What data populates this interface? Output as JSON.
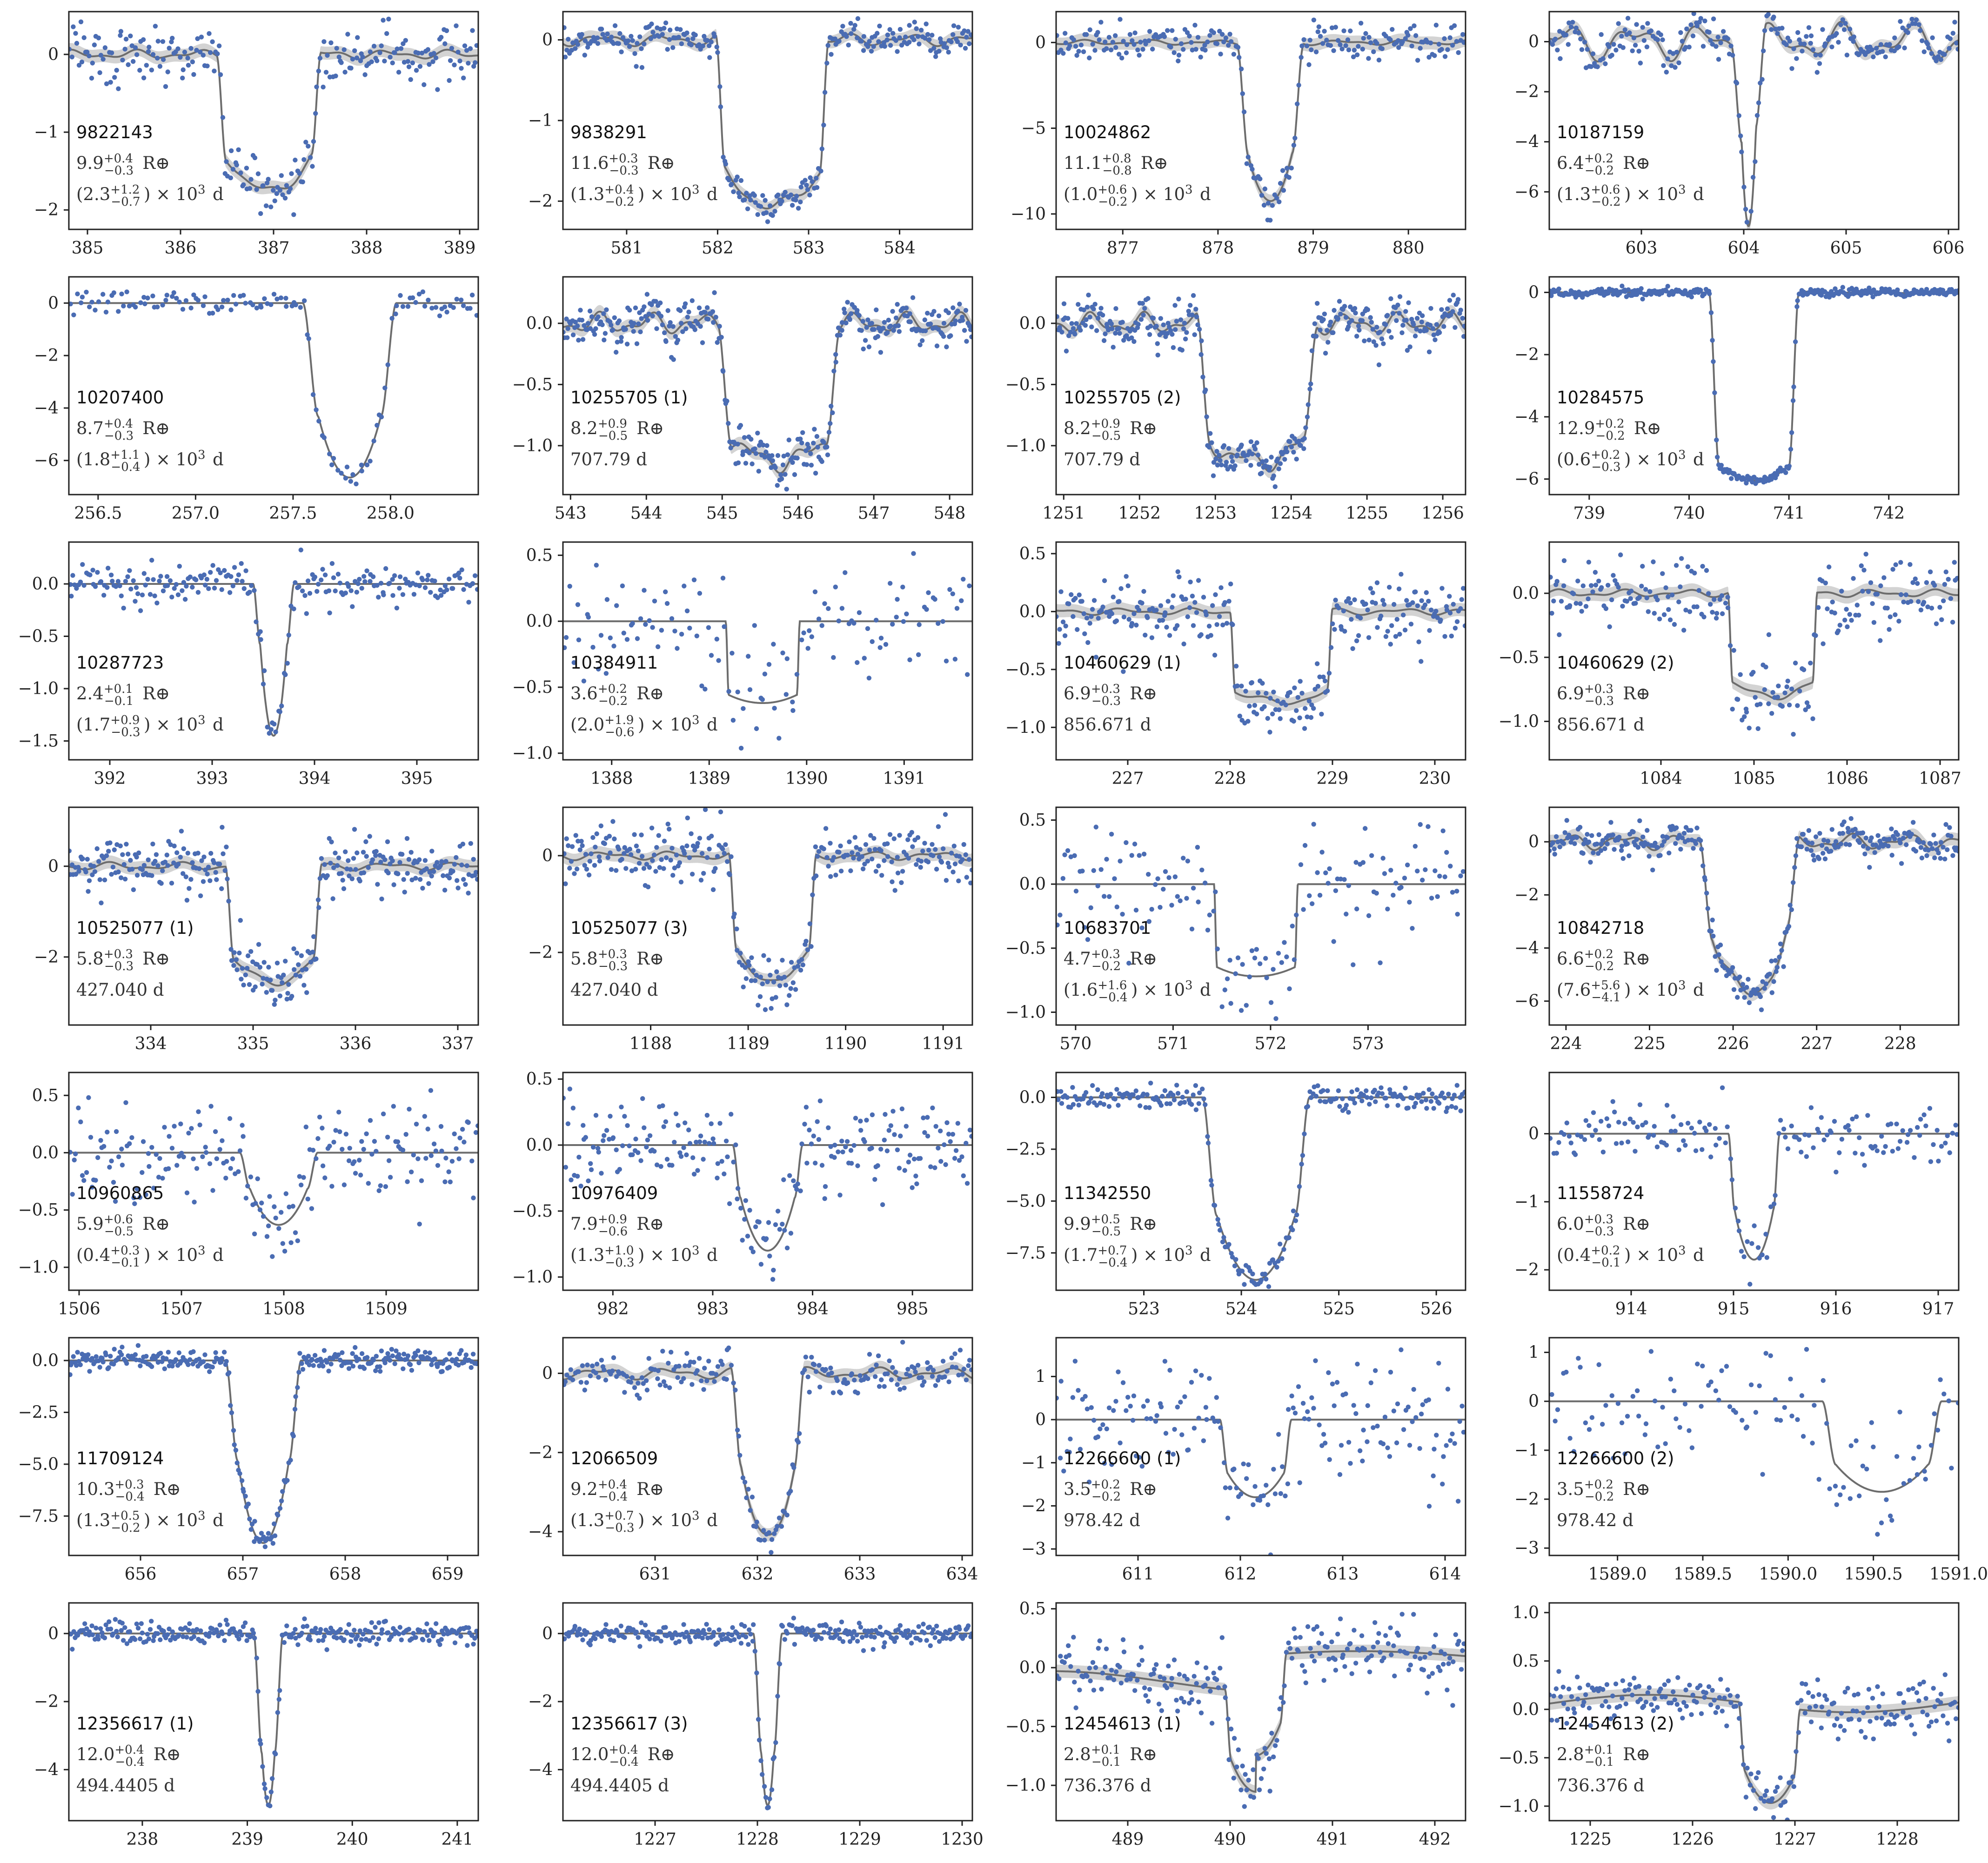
{
  "colors": {
    "points": "#4a6cb3",
    "model": "#6d6d6d",
    "band": "#c8c8c8",
    "frame": "#222222"
  },
  "chart_data": [
    {
      "type": "scatter",
      "label": "9822143",
      "radius": "9.9^{+0.4}_{-0.3} R⊕",
      "period": "(2.3^{+1.2}_{-0.7}) × 10³ d",
      "xlim": [
        384.8,
        389.2
      ],
      "ylim": [
        -2.25,
        0.55
      ],
      "xticks": [
        385,
        386,
        387,
        388,
        389
      ],
      "yticks": [
        0,
        -1,
        -2
      ],
      "t0": 386.95,
      "half": 0.56,
      "ing": 0.1,
      "depth": 1.75,
      "curv": 0.25,
      "noise": 0.18,
      "band": true,
      "wiggle": 0.04,
      "n": 230
    },
    {
      "type": "scatter",
      "label": "9838291",
      "radius": "11.6^{+0.3}_{-0.3} R⊕",
      "period": "(1.3^{+0.4}_{-0.2}) × 10³ d",
      "xlim": [
        580.3,
        584.8
      ],
      "ylim": [
        -2.35,
        0.35
      ],
      "xticks": [
        581,
        582,
        583,
        584
      ],
      "yticks": [
        0,
        -1,
        -2
      ],
      "t0": 582.6,
      "half": 0.62,
      "ing": 0.1,
      "depth": 2.05,
      "curv": 0.2,
      "noise": 0.09,
      "band": true,
      "wiggle": 0.05,
      "n": 260
    },
    {
      "type": "scatter",
      "label": "10024862",
      "radius": "11.1^{+0.8}_{-0.8} R⊕",
      "period": "(1.0^{+0.6}_{-0.2}) × 10³ d",
      "xlim": [
        876.3,
        880.6
      ],
      "ylim": [
        -10.9,
        1.8
      ],
      "xticks": [
        877,
        878,
        879,
        880
      ],
      "yticks": [
        0,
        -5,
        -10
      ],
      "t0": 878.55,
      "half": 0.35,
      "ing": 0.12,
      "depth": 9.3,
      "curv": 0.3,
      "noise": 0.5,
      "band": true,
      "wiggle": 0.1,
      "n": 220
    },
    {
      "type": "scatter",
      "label": "10187159",
      "radius": "6.4^{+0.2}_{-0.2} R⊕",
      "period": "(1.3^{+0.6}_{-0.2}) × 10³ d",
      "xlim": [
        602.1,
        606.1
      ],
      "ylim": [
        -7.5,
        1.2
      ],
      "xticks": [
        603,
        604,
        605,
        606
      ],
      "yticks": [
        0,
        -2,
        -4,
        -6
      ],
      "t0": 604.05,
      "half": 0.17,
      "ing": 0.1,
      "depth": 6.8,
      "curv": 0.5,
      "noise": 0.35,
      "band": true,
      "wiggle": 0.5,
      "n": 230
    },
    {
      "type": "scatter",
      "label": "10207400",
      "radius": "8.7^{+0.4}_{-0.3} R⊕",
      "period": "(1.8^{+1.1}_{-0.4}) × 10³ d",
      "xlim": [
        256.35,
        258.45
      ],
      "ylim": [
        -7.3,
        1.0
      ],
      "xticks": [
        256.5,
        257.0,
        257.5,
        258.0
      ],
      "tickfmt": 1,
      "yticks": [
        0,
        -2,
        -4,
        -6
      ],
      "t0": 257.79,
      "half": 0.24,
      "ing": 0.08,
      "depth": 6.65,
      "curv": 0.35,
      "noise": 0.25,
      "band": false,
      "wiggle": 0,
      "n": 130
    },
    {
      "type": "scatter",
      "label": "10255705 (1)",
      "radius": "8.2^{+0.9}_{-0.5} R⊕",
      "period": "707.79 d",
      "xlim": [
        542.9,
        548.3
      ],
      "ylim": [
        -1.4,
        0.38
      ],
      "xticks": [
        543,
        544,
        545,
        546,
        547,
        548
      ],
      "yticks": [
        0,
        -0.5,
        -1.0
      ],
      "tickfmt": 1,
      "t0": 545.75,
      "half": 0.8,
      "ing": 0.18,
      "depth": 1.13,
      "curv": 0.15,
      "noise": 0.08,
      "band": true,
      "wiggle": 0.06,
      "n": 330
    },
    {
      "type": "scatter",
      "label": "10255705 (2)",
      "radius": "8.2^{+0.9}_{-0.5} R⊕",
      "period": "707.79 d",
      "xlim": [
        1250.9,
        1256.3
      ],
      "ylim": [
        -1.4,
        0.38
      ],
      "xticks": [
        1251,
        1252,
        1253,
        1254,
        1255,
        1256
      ],
      "yticks": [
        0,
        -0.5,
        -1.0
      ],
      "tickfmt": 1,
      "t0": 1253.55,
      "half": 0.8,
      "ing": 0.18,
      "depth": 1.13,
      "curv": 0.15,
      "noise": 0.08,
      "band": true,
      "wiggle": 0.06,
      "n": 330
    },
    {
      "type": "scatter",
      "label": "10284575",
      "radius": "12.9^{+0.2}_{-0.2} R⊕",
      "period": "(0.6^{+0.2}_{-0.3}) × 10³ d",
      "xlim": [
        738.6,
        742.7
      ],
      "ylim": [
        -6.5,
        0.5
      ],
      "xticks": [
        739,
        740,
        741,
        742
      ],
      "yticks": [
        0,
        -2,
        -4,
        -6
      ],
      "t0": 740.65,
      "half": 0.45,
      "ing": 0.1,
      "depth": 6.05,
      "curv": 0.08,
      "noise": 0.07,
      "band": false,
      "wiggle": 0.02,
      "n": 330
    },
    {
      "type": "scatter",
      "label": "10287723",
      "radius": "2.4^{+0.1}_{-0.1} R⊕",
      "period": "(1.7^{+0.9}_{-0.3}) × 10³ d",
      "xlim": [
        391.6,
        395.6
      ],
      "ylim": [
        -1.68,
        0.4
      ],
      "xticks": [
        392,
        393,
        394,
        395
      ],
      "yticks": [
        0,
        -0.5,
        -1.0,
        -1.5
      ],
      "tickfmt": 1,
      "t0": 393.6,
      "half": 0.2,
      "ing": 0.07,
      "depth": 1.45,
      "curv": 0.6,
      "noise": 0.1,
      "band": false,
      "wiggle": 0,
      "n": 220
    },
    {
      "type": "scatter",
      "label": "10384911",
      "radius": "3.6^{+0.2}_{-0.2} R⊕",
      "period": "(2.0^{+1.9}_{-0.6}) × 10³ d",
      "xlim": [
        1387.5,
        1391.7
      ],
      "ylim": [
        -1.05,
        0.6
      ],
      "xticks": [
        1388,
        1389,
        1390,
        1391
      ],
      "yticks": [
        0.5,
        0,
        -0.5,
        -1.0
      ],
      "tickfmt": 1,
      "t0": 1389.55,
      "half": 0.38,
      "ing": 0.03,
      "depth": 0.62,
      "curv": 0.1,
      "noise": 0.2,
      "band": false,
      "wiggle": 0,
      "n": 130
    },
    {
      "type": "scatter",
      "label": "10460629 (1)",
      "radius": "6.9^{+0.3}_{-0.3} R⊕",
      "period": "856.671 d",
      "xlim": [
        226.3,
        230.3
      ],
      "ylim": [
        -1.28,
        0.6
      ],
      "xticks": [
        227,
        228,
        229,
        230
      ],
      "yticks": [
        0.5,
        0,
        -0.5,
        -1.0
      ],
      "tickfmt": 1,
      "t0": 228.5,
      "half": 0.5,
      "ing": 0.05,
      "depth": 0.78,
      "curv": 0.12,
      "noise": 0.15,
      "band": true,
      "wiggle": 0.02,
      "n": 260
    },
    {
      "type": "scatter",
      "label": "10460629 (2)",
      "radius": "6.9^{+0.3}_{-0.3} R⊕",
      "period": "856.671 d",
      "xlim": [
        1082.8,
        1087.2
      ],
      "ylim": [
        -1.3,
        0.4
      ],
      "xticks": [
        1084,
        1085,
        1086,
        1087
      ],
      "yticks": [
        0,
        -0.5,
        -1.0
      ],
      "tickfmt": 1,
      "t0": 1085.2,
      "half": 0.48,
      "ing": 0.05,
      "depth": 0.8,
      "curv": 0.12,
      "noise": 0.15,
      "band": true,
      "wiggle": 0.02,
      "n": 220
    },
    {
      "type": "scatter",
      "label": "10525077 (1)",
      "radius": "5.8^{+0.3}_{-0.3} R⊕",
      "period": "427.040 d",
      "xlim": [
        333.2,
        337.2
      ],
      "ylim": [
        -3.5,
        1.3
      ],
      "xticks": [
        334,
        335,
        336,
        337
      ],
      "yticks": [
        0,
        -2
      ],
      "t0": 335.2,
      "half": 0.47,
      "ing": 0.08,
      "depth": 2.55,
      "curv": 0.2,
      "noise": 0.3,
      "band": true,
      "wiggle": 0.06,
      "n": 300
    },
    {
      "type": "scatter",
      "label": "10525077 (3)",
      "radius": "5.8^{+0.3}_{-0.3} R⊕",
      "period": "427.040 d",
      "xlim": [
        1187.1,
        1191.3
      ],
      "ylim": [
        -3.5,
        1.0
      ],
      "xticks": [
        1188,
        1189,
        1190,
        1191
      ],
      "yticks": [
        0,
        -2
      ],
      "t0": 1189.25,
      "half": 0.45,
      "ing": 0.08,
      "depth": 2.55,
      "curv": 0.2,
      "noise": 0.3,
      "band": true,
      "wiggle": 0.06,
      "n": 280
    },
    {
      "type": "scatter",
      "label": "10683701",
      "radius": "4.7^{+0.3}_{-0.2} R⊕",
      "period": "(1.6^{+1.6}_{-0.4}) × 10³ d",
      "xlim": [
        569.8,
        574.0
      ],
      "ylim": [
        -1.1,
        0.6
      ],
      "xticks": [
        570,
        571,
        572,
        573
      ],
      "yticks": [
        0.5,
        0,
        -0.5,
        -1.0
      ],
      "tickfmt": 1,
      "t0": 571.85,
      "half": 0.43,
      "ing": 0.03,
      "depth": 0.72,
      "curv": 0.1,
      "noise": 0.22,
      "band": false,
      "wiggle": 0,
      "n": 150
    },
    {
      "type": "scatter",
      "label": "10842718",
      "radius": "6.6^{+0.2}_{-0.2} R⊕",
      "period": "(7.6^{+5.6}_{-4.1}) × 10³ d",
      "xlim": [
        223.8,
        228.7
      ],
      "ylim": [
        -6.9,
        1.3
      ],
      "xticks": [
        224,
        225,
        226,
        227,
        228
      ],
      "yticks": [
        0,
        -2,
        -4,
        -6
      ],
      "t0": 226.2,
      "half": 0.6,
      "ing": 0.15,
      "depth": 5.7,
      "curv": 0.4,
      "noise": 0.3,
      "band": true,
      "wiggle": 0.2,
      "n": 300
    },
    {
      "type": "scatter",
      "label": "10960865",
      "radius": "5.9^{+0.6}_{-0.5} R⊕",
      "period": "(0.4^{+0.3}_{-0.1}) × 10³ d",
      "xlim": [
        1505.9,
        1509.9
      ],
      "ylim": [
        -1.2,
        0.7
      ],
      "xticks": [
        1506,
        1507,
        1508,
        1509
      ],
      "yticks": [
        0.5,
        0,
        -0.5,
        -1.0
      ],
      "tickfmt": 1,
      "t0": 1507.95,
      "half": 0.38,
      "ing": 0.1,
      "depth": 0.63,
      "curv": 0.5,
      "noise": 0.22,
      "band": false,
      "wiggle": 0,
      "n": 200
    },
    {
      "type": "scatter",
      "label": "10976409",
      "radius": "7.9^{+0.9}_{-0.6} R⊕",
      "period": "(1.3^{+1.0}_{-0.3}) × 10³ d",
      "xlim": [
        981.5,
        985.6
      ],
      "ylim": [
        -1.1,
        0.55
      ],
      "xticks": [
        982,
        983,
        984,
        985
      ],
      "yticks": [
        0.5,
        0,
        -0.5,
        -1.0
      ],
      "tickfmt": 1,
      "t0": 983.55,
      "half": 0.35,
      "ing": 0.08,
      "depth": 0.8,
      "curv": 0.5,
      "noise": 0.17,
      "band": false,
      "wiggle": 0,
      "n": 220
    },
    {
      "type": "scatter",
      "label": "11342550",
      "radius": "9.9^{+0.5}_{-0.5} R⊕",
      "period": "(1.7^{+0.7}_{-0.4}) × 10³ d",
      "xlim": [
        522.1,
        526.3
      ],
      "ylim": [
        -9.3,
        1.2
      ],
      "xticks": [
        523,
        524,
        525,
        526
      ],
      "yticks": [
        0,
        -2.5,
        -5.0,
        -7.5
      ],
      "tickfmt": 1,
      "t0": 524.15,
      "half": 0.55,
      "ing": 0.15,
      "depth": 8.8,
      "curv": 0.35,
      "noise": 0.3,
      "band": false,
      "wiggle": 0,
      "n": 240
    },
    {
      "type": "scatter",
      "label": "11558724",
      "radius": "6.0^{+0.3}_{-0.3} R⊕",
      "period": "(0.4^{+0.2}_{-0.1}) × 10³ d",
      "xlim": [
        913.2,
        917.2
      ],
      "ylim": [
        -2.3,
        0.9
      ],
      "xticks": [
        914,
        915,
        916,
        917
      ],
      "yticks": [
        0,
        -1,
        -2
      ],
      "t0": 915.2,
      "half": 0.25,
      "ing": 0.06,
      "depth": 1.85,
      "curv": 0.4,
      "noise": 0.2,
      "band": false,
      "wiggle": 0,
      "n": 160
    },
    {
      "type": "scatter",
      "label": "11709124",
      "radius": "10.3^{+0.3}_{-0.4} R⊕",
      "period": "(1.3^{+0.5}_{-0.2}) × 10³ d",
      "xlim": [
        655.3,
        659.3
      ],
      "ylim": [
        -9.4,
        1.1
      ],
      "xticks": [
        656,
        657,
        658,
        659
      ],
      "yticks": [
        0,
        -2.5,
        -5.0,
        -7.5
      ],
      "tickfmt": 1,
      "t0": 657.2,
      "half": 0.37,
      "ing": 0.12,
      "depth": 8.8,
      "curv": 0.45,
      "noise": 0.25,
      "band": false,
      "wiggle": 0,
      "n": 300
    },
    {
      "type": "scatter",
      "label": "12066509",
      "radius": "9.2^{+0.4}_{-0.4} R⊕",
      "period": "(1.3^{+0.7}_{-0.3}) × 10³ d",
      "xlim": [
        630.1,
        634.1
      ],
      "ylim": [
        -4.6,
        0.9
      ],
      "xticks": [
        631,
        632,
        633,
        634
      ],
      "yticks": [
        0,
        -2,
        -4
      ],
      "t0": 632.1,
      "half": 0.36,
      "ing": 0.1,
      "depth": 4.05,
      "curv": 0.4,
      "noise": 0.25,
      "band": true,
      "wiggle": 0.1,
      "n": 220
    },
    {
      "type": "scatter",
      "label": "12266600 (1)",
      "radius": "3.5^{+0.2}_{-0.2} R⊕",
      "period": "978.42 d",
      "xlim": [
        610.2,
        614.2
      ],
      "ylim": [
        -3.15,
        1.9
      ],
      "xticks": [
        611,
        612,
        613,
        614
      ],
      "yticks": [
        1,
        0,
        -1,
        -2,
        -3
      ],
      "t0": 612.15,
      "half": 0.35,
      "ing": 0.08,
      "depth": 1.8,
      "curv": 0.3,
      "noise": 0.75,
      "band": false,
      "wiggle": 0,
      "n": 180
    },
    {
      "type": "scatter",
      "label": "12266600 (2)",
      "radius": "3.5^{+0.2}_{-0.2} R⊕",
      "period": "978.42 d",
      "xlim": [
        1588.6,
        1591.0
      ],
      "ylim": [
        -3.15,
        1.3
      ],
      "xticks": [
        1589.0,
        1589.5,
        1590.0,
        1590.5,
        1591.0
      ],
      "tickfmt": 1,
      "yticks": [
        1,
        0,
        -1,
        -2,
        -3
      ],
      "t0": 1590.55,
      "half": 0.35,
      "ing": 0.08,
      "depth": 1.85,
      "curv": 0.3,
      "noise": 0.6,
      "band": false,
      "wiggle": 0,
      "n": 110
    },
    {
      "type": "scatter",
      "label": "12356617 (1)",
      "radius": "12.0^{+0.4}_{-0.4} R⊕",
      "period": "494.4405 d",
      "xlim": [
        237.3,
        241.2
      ],
      "ylim": [
        -5.5,
        0.9
      ],
      "xticks": [
        238,
        239,
        240,
        241
      ],
      "yticks": [
        0,
        -2,
        -4
      ],
      "t0": 239.2,
      "half": 0.14,
      "ing": 0.08,
      "depth": 5.05,
      "curv": 0.3,
      "noise": 0.17,
      "band": false,
      "wiggle": 0,
      "n": 280
    },
    {
      "type": "scatter",
      "label": "12356617 (3)",
      "radius": "12.0^{+0.4}_{-0.4} R⊕",
      "period": "494.4405 d",
      "xlim": [
        1226.1,
        1230.1
      ],
      "ylim": [
        -5.5,
        0.9
      ],
      "xticks": [
        1227,
        1228,
        1229,
        1230
      ],
      "yticks": [
        0,
        -2,
        -4
      ],
      "t0": 1228.1,
      "half": 0.14,
      "ing": 0.08,
      "depth": 5.05,
      "curv": 0.3,
      "noise": 0.17,
      "band": false,
      "wiggle": 0,
      "n": 280
    },
    {
      "type": "scatter",
      "label": "12454613 (1)",
      "radius": "2.8^{+0.1}_{-0.1} R⊕",
      "period": "736.376 d",
      "xlim": [
        488.3,
        492.3
      ],
      "ylim": [
        -1.3,
        0.55
      ],
      "xticks": [
        489,
        490,
        491,
        492
      ],
      "yticks": [
        0.5,
        0,
        -0.5,
        -1.0
      ],
      "tickfmt": 1,
      "t0": 490.25,
      "half": 0.3,
      "ing": 0.06,
      "depth": 0.85,
      "curv": 0.3,
      "noise": 0.13,
      "band": true,
      "trend": "p1",
      "n": 230
    },
    {
      "type": "scatter",
      "label": "12454613 (2)",
      "radius": "2.8^{+0.1}_{-0.1} R⊕",
      "period": "736.376 d",
      "xlim": [
        1224.6,
        1228.6
      ],
      "ylim": [
        -1.15,
        1.1
      ],
      "xticks": [
        1225,
        1226,
        1227,
        1228
      ],
      "yticks": [
        1.0,
        0.5,
        0,
        -0.5,
        -1.0
      ],
      "tickfmt": 1,
      "t0": 1226.75,
      "half": 0.3,
      "ing": 0.06,
      "depth": 1.0,
      "curv": 0.3,
      "noise": 0.13,
      "band": true,
      "trend": "p2",
      "n": 230
    }
  ]
}
